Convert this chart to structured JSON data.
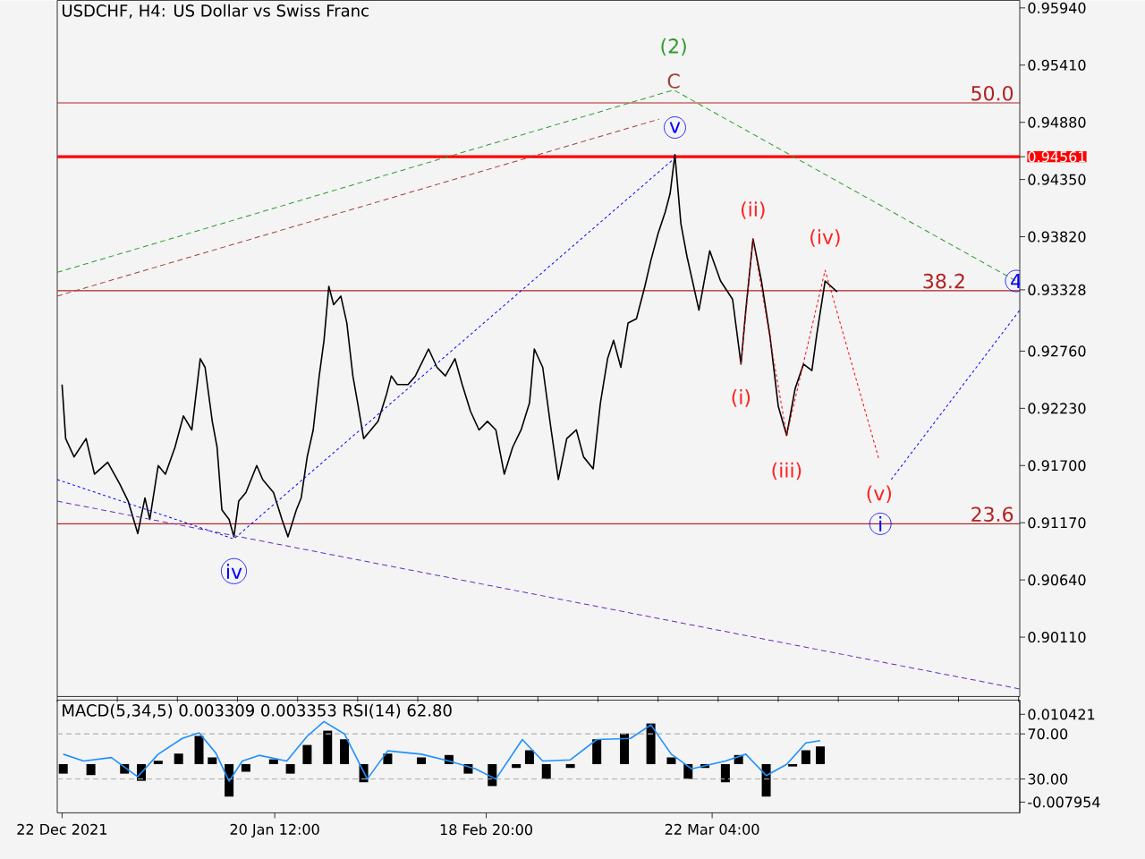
{
  "chart_data": [
    {
      "type": "line",
      "title": "USDCHF, H4:  US Dollar vs Swiss Franc",
      "xlim": [
        "2021-12-21T08:00",
        "2022-05-03T20:00"
      ],
      "ylim": [
        0.8956,
        0.9601
      ],
      "yticks": [
        {
          "value": 0.9594,
          "label": "0.95940"
        },
        {
          "value": 0.9541,
          "label": "0.95410"
        },
        {
          "value": 0.9488,
          "label": "0.94880"
        },
        {
          "value": 0.94561,
          "label": "0.94561"
        },
        {
          "value": 0.9435,
          "label": "0.94350"
        },
        {
          "value": 0.9382,
          "label": "0.93820"
        },
        {
          "value": 0.93328,
          "label": "0.93328"
        },
        {
          "value": 0.9276,
          "label": "0.92760"
        },
        {
          "value": 0.9223,
          "label": "0.92230"
        },
        {
          "value": 0.917,
          "label": "0.91700"
        },
        {
          "value": 0.9117,
          "label": "0.91170"
        },
        {
          "value": 0.9064,
          "label": "0.90640"
        },
        {
          "value": 0.9011,
          "label": "0.90110"
        }
      ],
      "tick_labels": "y",
      "ref_lines": [
        {
          "axis": "y",
          "value": 0.9506,
          "color": "#b22222"
        },
        {
          "axis": "y",
          "value": 0.9332,
          "color": "#b22222"
        },
        {
          "axis": "y",
          "value": 0.9116,
          "color": "#b22222"
        },
        {
          "axis": "y",
          "value": 0.94561,
          "color": "#ff0000"
        }
      ],
      "series": [
        {
          "color": "#000000",
          "x": [
            "2021-12-22T00:00",
            "2021-12-22T12:00",
            "2021-12-23T16:00",
            "2021-12-25T08:00",
            "2021-12-26T12:00",
            "2021-12-28T08:00",
            "2021-12-30T00:00",
            "2021-12-31T04:00",
            "2022-01-01T12:00",
            "2022-01-02T12:00",
            "2022-01-03T04:00",
            "2022-01-04T08:00",
            "2022-01-05T08:00",
            "2022-01-06T16:00",
            "2022-01-07T20:00",
            "2022-01-09T00:00",
            "2022-01-10T04:00",
            "2022-01-10T20:00",
            "2022-01-11T20:00",
            "2022-01-12T12:00",
            "2022-01-13T04:00",
            "2022-01-14T04:00",
            "2022-01-14T20:00",
            "2022-01-15T12:00",
            "2022-01-16T12:00",
            "2022-01-18T00:00",
            "2022-01-18T20:00",
            "2022-01-20T08:00",
            "2022-01-21T12:00",
            "2022-01-22T08:00",
            "2022-01-23T12:00",
            "2022-01-24T04:00",
            "2022-01-25T00:00",
            "2022-01-25T20:00",
            "2022-01-26T16:00",
            "2022-01-27T08:00",
            "2022-01-28T00:00",
            "2022-01-28T16:00",
            "2022-01-29T16:00",
            "2022-01-30T12:00",
            "2022-01-31T08:00",
            "2022-02-01T00:00",
            "2022-02-01T20:00",
            "2022-02-02T20:00",
            "2022-02-03T20:00",
            "2022-02-05T00:00",
            "2022-02-05T16:00",
            "2022-02-06T12:00",
            "2022-02-08T00:00",
            "2022-02-09T00:00",
            "2022-02-10T20:00",
            "2022-02-12T00:00",
            "2022-02-13T04:00",
            "2022-02-14T12:00",
            "2022-02-15T12:00",
            "2022-02-16T16:00",
            "2022-02-17T20:00",
            "2022-02-19T00:00",
            "2022-02-20T04:00",
            "2022-02-21T08:00",
            "2022-02-22T12:00",
            "2022-02-23T16:00",
            "2022-02-24T20:00",
            "2022-02-25T12:00",
            "2022-02-26T16:00",
            "2022-02-27T20:00",
            "2022-02-28T20:00",
            "2022-03-02T00:00",
            "2022-03-03T08:00",
            "2022-03-04T08:00",
            "2022-03-05T16:00",
            "2022-03-06T16:00",
            "2022-03-07T16:00",
            "2022-03-08T12:00",
            "2022-03-09T12:00",
            "2022-03-10T12:00",
            "2022-03-11T16:00",
            "2022-03-12T20:00",
            "2022-03-13T16:00",
            "2022-03-14T16:00",
            "2022-03-15T16:00",
            "2022-03-16T08:00",
            "2022-03-17T00:00",
            "2022-03-17T20:00",
            "2022-03-18T16:00",
            "2022-03-20T08:00",
            "2022-03-21T20:00",
            "2022-03-23T08:00",
            "2022-03-25T00:00",
            "2022-03-26T04:00",
            "2022-03-26T20:00",
            "2022-03-27T20:00",
            "2022-03-29T00:00",
            "2022-03-30T04:00",
            "2022-03-31T08:00",
            "2022-04-01T12:00",
            "2022-04-02T16:00",
            "2022-04-03T20:00",
            "2022-04-05T00:00",
            "2022-04-05T16:00",
            "2022-04-06T20:00",
            "2022-04-08T12:00"
          ],
          "values": [
            0.9245,
            0.9195,
            0.9178,
            0.9195,
            0.9162,
            0.9173,
            0.9153,
            0.9137,
            0.9107,
            0.914,
            0.912,
            0.917,
            0.9162,
            0.9187,
            0.9216,
            0.9203,
            0.9269,
            0.9261,
            0.9211,
            0.9187,
            0.9129,
            0.912,
            0.9104,
            0.9137,
            0.9145,
            0.917,
            0.9157,
            0.9145,
            0.912,
            0.9104,
            0.9129,
            0.914,
            0.9178,
            0.9203,
            0.9253,
            0.9286,
            0.9336,
            0.9319,
            0.9327,
            0.9302,
            0.9253,
            0.9228,
            0.9195,
            0.9203,
            0.9211,
            0.9236,
            0.9253,
            0.9245,
            0.9245,
            0.9253,
            0.9278,
            0.9261,
            0.9253,
            0.9269,
            0.9245,
            0.922,
            0.9203,
            0.9211,
            0.9203,
            0.9162,
            0.9187,
            0.9203,
            0.9228,
            0.9278,
            0.9261,
            0.9203,
            0.9157,
            0.9195,
            0.9203,
            0.9178,
            0.9167,
            0.9228,
            0.9269,
            0.9286,
            0.9261,
            0.9302,
            0.9306,
            0.9336,
            0.936,
            0.9385,
            0.9405,
            0.9422,
            0.9458,
            0.9394,
            0.9364,
            0.9314,
            0.9369,
            0.9341,
            0.9324,
            0.9264,
            0.9314,
            0.938,
            0.9341,
            0.9291,
            0.9225,
            0.9198,
            0.9241,
            0.9264,
            0.9258,
            0.9291,
            0.9341,
            0.9331
          ]
        },
        {
          "color": "#2e9b2e",
          "line_style": "dashed",
          "x": [
            "2021-12-21T08:00",
            "2022-03-16T20:00",
            "2022-05-03T08:00"
          ],
          "values": [
            0.9349,
            0.9518,
            0.9341
          ]
        },
        {
          "color": "#a0403a",
          "line_style": "dashed",
          "x": [
            "2021-12-21T08:00",
            "2022-03-14T20:00"
          ],
          "values": [
            0.9327,
            0.9491
          ]
        },
        {
          "color": "#0000ff",
          "line_style": "dotted",
          "x": [
            "2021-12-21T08:00",
            "2022-01-14T20:00",
            "2022-03-17T00:00"
          ],
          "values": [
            0.9157,
            0.9102,
            0.9455
          ]
        },
        {
          "color": "#0000ff",
          "line_style": "dotted",
          "x": [
            "2022-04-16T00:00",
            "2022-05-03T20:00"
          ],
          "values": [
            0.9157,
            0.9314
          ]
        },
        {
          "color": "#ff0000",
          "line_style": "dotted",
          "x": [
            "2022-03-26T04:00",
            "2022-03-27T20:00",
            "2022-04-01T12:00",
            "2022-04-06T20:00",
            "2022-04-14T08:00"
          ],
          "values": [
            0.9264,
            0.938,
            0.9198,
            0.9351,
            0.9175
          ]
        },
        {
          "color": "#6a2dbf",
          "line_style": "dashed",
          "x": [
            "2021-12-21T08:00",
            "2022-05-03T20:00"
          ],
          "values": [
            0.9137,
            0.8963
          ]
        }
      ],
      "annotations": [
        {
          "text": "(2)",
          "x": "2022-03-16T20:00",
          "y": 0.9518
        },
        {
          "text": "C",
          "x": "2022-03-16T20:00",
          "y": 0.9518
        },
        {
          "text": "v",
          "x": "2022-03-17T00:00",
          "y": 0.9455
        },
        {
          "text": "(i)",
          "x": "2022-03-26T04:00",
          "y": 0.9264
        },
        {
          "text": "(ii)",
          "x": "2022-03-27T20:00",
          "y": 0.938
        },
        {
          "text": "(iii)",
          "x": "2022-04-01T12:00",
          "y": 0.9198
        },
        {
          "text": "(iv)",
          "x": "2022-04-06T20:00",
          "y": 0.9351
        },
        {
          "text": "(v)",
          "x": "2022-04-14T08:00",
          "y": 0.9175
        },
        {
          "text": "i",
          "x": "2022-04-14T12:00",
          "y": 0.9116
        },
        {
          "text": "iv",
          "x": "2022-01-14T20:00",
          "y": 0.9102
        },
        {
          "text": "4",
          "x": "2022-05-03T08:00",
          "y": 0.9341
        },
        {
          "text": "50.0",
          "x": "2022-05-03T08:00",
          "y": 0.9506
        },
        {
          "text": "38.2",
          "x": "2022-04-26T16:00",
          "y": 0.9332
        },
        {
          "text": "23.6",
          "x": "2022-05-03T08:00",
          "y": 0.9116
        }
      ]
    },
    {
      "type": "bar",
      "title": "MACD(5,34,5) 0.003309 0.003353 RSI(14) 62.80",
      "xlim": [
        "2021-12-21T08:00",
        "2022-05-03T20:00"
      ],
      "ylim": [
        -0.0102,
        0.0134
      ],
      "y2lim": [
        0,
        100
      ],
      "xticks": [
        {
          "value": "2021-12-22",
          "label": "22 Dec 2021"
        },
        {
          "value": "2022-01-20T12:00",
          "label": "20 Jan 12:00"
        },
        {
          "value": "2022-02-18T20:00",
          "label": "18 Feb 20:00"
        },
        {
          "value": "2022-03-22T04:00",
          "label": "22 Mar 04:00"
        }
      ],
      "yticks": [
        0.010421,
        -0.007954
      ],
      "y2ticks": [
        {
          "value": 70,
          "label": "70.00"
        },
        {
          "value": 30,
          "label": "30.00"
        }
      ],
      "ref_lines": [
        {
          "axis": "y2",
          "value": 70,
          "color": "#b0b0b0",
          "line_style": "dashed"
        },
        {
          "axis": "y2",
          "value": 30,
          "color": "#b0b0b0",
          "line_style": "dashed"
        }
      ],
      "series": [
        {
          "color": "#000000",
          "x": [
            "2021-12-22T04:00",
            "2021-12-26T00:00",
            "2021-12-30T16:00",
            "2022-01-02T00:00",
            "2022-01-04T08:00",
            "2022-01-07T04:00",
            "2022-01-10T00:00",
            "2022-01-11T20:00",
            "2022-01-14T04:00",
            "2022-01-16T12:00",
            "2022-01-20T08:00",
            "2022-01-22T16:00",
            "2022-01-25T00:00",
            "2022-01-27T20:00",
            "2022-01-30T04:00",
            "2022-02-01T20:00",
            "2022-02-05T04:00",
            "2022-02-09T20:00",
            "2022-02-13T16:00",
            "2022-02-16T08:00",
            "2022-02-19T16:00",
            "2022-02-23T00:00",
            "2022-02-24T20:00",
            "2022-02-27T04:00",
            "2022-03-02T12:00",
            "2022-03-06T04:00",
            "2022-03-10T00:00",
            "2022-03-13T16:00",
            "2022-03-16T12:00",
            "2022-03-18T20:00",
            "2022-03-21T04:00",
            "2022-03-24T00:00",
            "2022-03-25T20:00",
            "2022-03-29T16:00",
            "2022-04-02T08:00",
            "2022-04-04T04:00",
            "2022-04-06T04:00"
          ],
          "values": [
            -0.002,
            -0.0023,
            -0.002,
            -0.0035,
            0.0007,
            0.0022,
            0.0059,
            0.0014,
            -0.0068,
            -0.0016,
            0.001,
            -0.002,
            0.004,
            0.007,
            0.0052,
            -0.0038,
            0.0022,
            0.0014,
            0.0019,
            -0.002,
            -0.0046,
            -0.0008,
            0.0029,
            -0.0031,
            -0.0008,
            0.0052,
            0.0064,
            0.0085,
            0.0014,
            -0.0031,
            -0.0008,
            -0.0038,
            0.0019,
            -0.0068,
            -0.0005,
            0.0029,
            0.0037
          ]
        },
        {
          "type": "line",
          "axis": "y2",
          "color": "#1e90ff",
          "x": [
            "2021-12-22T04:00",
            "2021-12-25T00:00",
            "2021-12-28T20:00",
            "2022-01-01T12:00",
            "2022-01-04T08:00",
            "2022-01-07T16:00",
            "2022-01-10T00:00",
            "2022-01-12T08:00",
            "2022-01-14T04:00",
            "2022-01-16T00:00",
            "2022-01-18T08:00",
            "2022-01-22T04:00",
            "2022-01-25T00:00",
            "2022-01-27T08:00",
            "2022-01-30T04:00",
            "2022-02-02T08:00",
            "2022-02-05T04:00",
            "2022-02-09T20:00",
            "2022-02-13T16:00",
            "2022-02-17T08:00",
            "2022-02-20T04:00",
            "2022-02-23T20:00",
            "2022-02-26T16:00",
            "2022-03-02T12:00",
            "2022-03-06T04:00",
            "2022-03-10T20:00",
            "2022-03-13T16:00",
            "2022-03-16T12:00",
            "2022-03-19T08:00",
            "2022-03-24T00:00",
            "2022-03-26T20:00",
            "2022-03-29T16:00",
            "2022-04-01T12:00",
            "2022-04-04T04:00",
            "2022-04-06T04:00"
          ],
          "values": [
            52,
            46,
            49,
            32,
            52,
            66,
            71,
            53,
            28,
            46,
            51,
            46,
            68,
            81,
            70,
            30,
            55,
            52,
            46,
            39,
            30,
            65,
            46,
            47,
            65,
            66,
            78,
            52,
            39,
            46,
            52,
            33,
            43,
            62,
            64
          ]
        }
      ]
    }
  ]
}
